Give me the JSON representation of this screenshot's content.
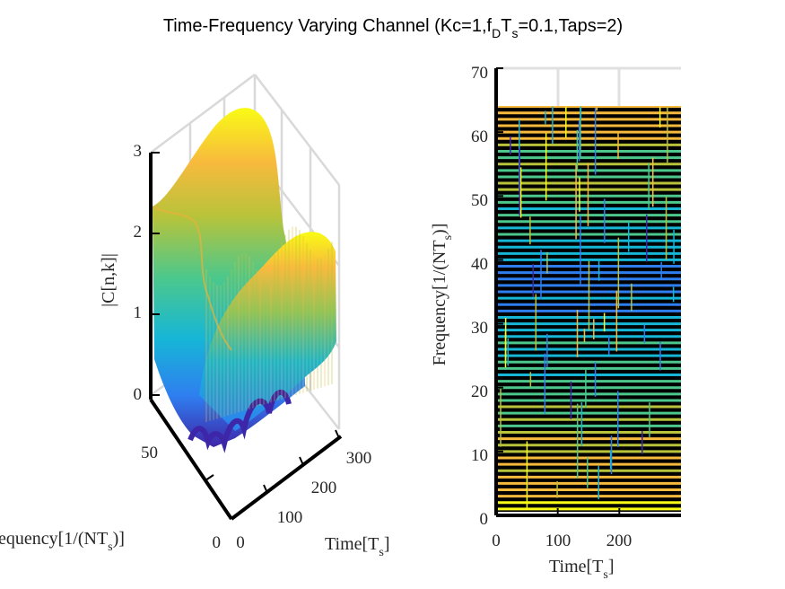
{
  "figure": {
    "title_main": "Time-Frequency Varying Channel (Kc=1,f",
    "title_sub_D": "D",
    "title_T": "T",
    "title_sub_s": "s",
    "title_rest": "=0.1,Taps=2)"
  },
  "chart_data": [
    {
      "type": "surface3d",
      "name": "3D magnitude surface",
      "zlabel": "|C[n,k]|",
      "xlabel_main": "Time[T",
      "xlabel_sub": "s",
      "xlabel_end": "]",
      "ylabel_main": "equency[1/(NT",
      "ylabel_sub": "s",
      "ylabel_end": ")]",
      "x_ticks": [
        "0",
        "100",
        "200",
        "300"
      ],
      "y_ticks": [
        "0",
        "50"
      ],
      "z_ticks": [
        "0",
        "1",
        "2",
        "3"
      ],
      "xlim": [
        0,
        300
      ],
      "ylim": [
        0,
        64
      ],
      "zlim": [
        0,
        3
      ],
      "colormap": [
        "#3e26a8",
        "#2f7ef0",
        "#16b6d6",
        "#4cc88c",
        "#b8c33a",
        "#f8ba3d",
        "#f9fb15"
      ],
      "note": "Magnitude surface |C[n,k]| over time n and frequency k; peaks near 3 and troughs near 0"
    },
    {
      "type": "heatmap",
      "name": "2D time-frequency view",
      "xlabel_main": "Time[T",
      "xlabel_sub": "s",
      "xlabel_end": "]",
      "ylabel_main": "Frequency[1/(NT",
      "ylabel_sub": "s",
      "ylabel_end": ")]",
      "x_ticks": [
        "0",
        "100",
        "200"
      ],
      "y_ticks": [
        "0",
        "10",
        "20",
        "30",
        "40",
        "50",
        "60",
        "70"
      ],
      "xlim": [
        0,
        300
      ],
      "ylim": [
        0,
        70
      ],
      "data_ylim": [
        1,
        64
      ],
      "colormap": [
        "#3e26a8",
        "#2f7ef0",
        "#16b6d6",
        "#4cc88c",
        "#b8c33a",
        "#f8ba3d",
        "#f9fb15"
      ]
    }
  ]
}
